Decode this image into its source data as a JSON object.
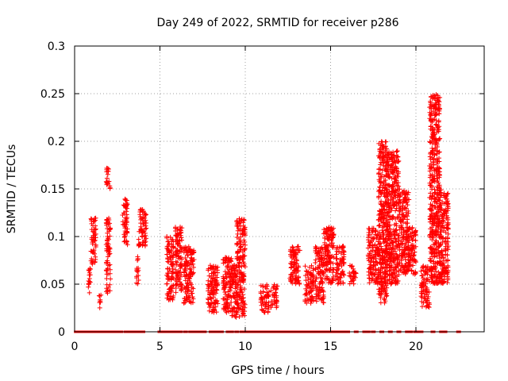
{
  "chart_data": {
    "type": "scatter",
    "title": "Day 249 of 2022, SRMTID for receiver p286",
    "xlabel": "GPS time / hours",
    "ylabel": "SRMTID / TECUs",
    "xlim": [
      0,
      24
    ],
    "ylim": [
      0,
      0.3
    ],
    "x_ticks": [
      0,
      5,
      10,
      15,
      20
    ],
    "x_tick_labels": [
      "0",
      "5",
      "10",
      "15",
      "20"
    ],
    "y_ticks": [
      0,
      0.05,
      0.1,
      0.15,
      0.2,
      0.25,
      0.3
    ],
    "y_tick_labels": [
      "0",
      "0.05",
      "0.1",
      "0.15",
      "0.2",
      "0.25",
      "0.3"
    ],
    "grid": true,
    "marker": "+",
    "color": "#ff0000",
    "zero_line_hours": [
      0.1,
      0.2,
      0.3,
      0.4,
      0.5,
      0.6,
      0.7,
      0.8,
      0.9,
      1.0,
      1.1,
      1.3,
      1.5,
      1.6,
      1.7,
      1.8,
      2.0,
      2.2,
      2.3,
      2.5,
      2.6,
      2.7,
      3.0,
      3.2,
      3.4,
      3.6,
      3.8,
      4.0,
      5.0,
      5.2,
      5.4,
      5.6,
      5.8,
      6.0,
      6.2,
      6.5,
      6.8,
      7.0,
      7.2,
      7.4,
      7.6,
      8.0,
      8.2,
      8.4,
      8.6,
      9.0,
      9.2,
      9.5,
      9.8,
      10.0,
      10.2,
      10.4,
      10.6,
      10.8,
      11.0,
      11.2,
      11.4,
      11.6,
      11.8,
      12.0,
      12.2,
      12.4,
      12.6,
      12.8,
      13.0,
      13.2,
      13.4,
      13.6,
      13.8,
      14.0,
      14.2,
      14.4,
      14.6,
      14.8,
      15.0,
      15.1,
      15.2,
      15.4,
      15.6,
      15.8,
      16.0,
      16.5,
      17.0,
      17.2,
      17.5,
      18.0,
      18.5,
      19.0,
      19.5,
      19.7,
      20.0,
      20.2,
      20.3,
      21.0,
      21.5,
      21.7,
      22.5
    ],
    "clusters": [
      {
        "x": [
          0.8,
          0.95
        ],
        "y": [
          0.04,
          0.07
        ]
      },
      {
        "x": [
          0.95,
          1.25
        ],
        "y": [
          0.07,
          0.12
        ]
      },
      {
        "x": [
          1.4,
          1.55
        ],
        "y": [
          0.025,
          0.04
        ]
      },
      {
        "x": [
          1.85,
          2.1
        ],
        "y": [
          0.15,
          0.172
        ]
      },
      {
        "x": [
          1.85,
          2.1
        ],
        "y": [
          0.04,
          0.12
        ]
      },
      {
        "x": [
          2.8,
          3.1
        ],
        "y": [
          0.09,
          0.14
        ]
      },
      {
        "x": [
          3.6,
          3.75
        ],
        "y": [
          0.05,
          0.08
        ]
      },
      {
        "x": [
          3.75,
          4.2
        ],
        "y": [
          0.09,
          0.13
        ]
      },
      {
        "x": [
          5.4,
          5.8
        ],
        "y": [
          0.03,
          0.1
        ]
      },
      {
        "x": [
          5.9,
          6.3
        ],
        "y": [
          0.04,
          0.11
        ]
      },
      {
        "x": [
          6.4,
          7.0
        ],
        "y": [
          0.03,
          0.09
        ]
      },
      {
        "x": [
          7.8,
          8.4
        ],
        "y": [
          0.02,
          0.07
        ]
      },
      {
        "x": [
          8.7,
          9.2
        ],
        "y": [
          0.02,
          0.08
        ]
      },
      {
        "x": [
          9.2,
          10.0
        ],
        "y": [
          0.015,
          0.07
        ]
      },
      {
        "x": [
          9.5,
          10.0
        ],
        "y": [
          0.07,
          0.12
        ]
      },
      {
        "x": [
          10.9,
          11.4
        ],
        "y": [
          0.02,
          0.05
        ]
      },
      {
        "x": [
          11.5,
          11.9
        ],
        "y": [
          0.025,
          0.05
        ]
      },
      {
        "x": [
          12.6,
          13.2
        ],
        "y": [
          0.05,
          0.09
        ]
      },
      {
        "x": [
          13.5,
          14.0
        ],
        "y": [
          0.03,
          0.07
        ]
      },
      {
        "x": [
          14.1,
          14.6
        ],
        "y": [
          0.03,
          0.09
        ]
      },
      {
        "x": [
          14.6,
          15.2
        ],
        "y": [
          0.05,
          0.11
        ]
      },
      {
        "x": [
          15.3,
          15.8
        ],
        "y": [
          0.05,
          0.09
        ]
      },
      {
        "x": [
          16.1,
          16.5
        ],
        "y": [
          0.05,
          0.07
        ]
      },
      {
        "x": [
          17.2,
          17.8
        ],
        "y": [
          0.05,
          0.11
        ]
      },
      {
        "x": [
          17.8,
          18.3
        ],
        "y": [
          0.03,
          0.2
        ]
      },
      {
        "x": [
          18.3,
          19.0
        ],
        "y": [
          0.05,
          0.19
        ]
      },
      {
        "x": [
          19.0,
          19.6
        ],
        "y": [
          0.06,
          0.15
        ]
      },
      {
        "x": [
          19.6,
          20.0
        ],
        "y": [
          0.06,
          0.11
        ]
      },
      {
        "x": [
          20.3,
          20.8
        ],
        "y": [
          0.025,
          0.07
        ]
      },
      {
        "x": [
          20.8,
          21.4
        ],
        "y": [
          0.05,
          0.25
        ]
      },
      {
        "x": [
          21.4,
          21.9
        ],
        "y": [
          0.05,
          0.15
        ]
      }
    ]
  }
}
